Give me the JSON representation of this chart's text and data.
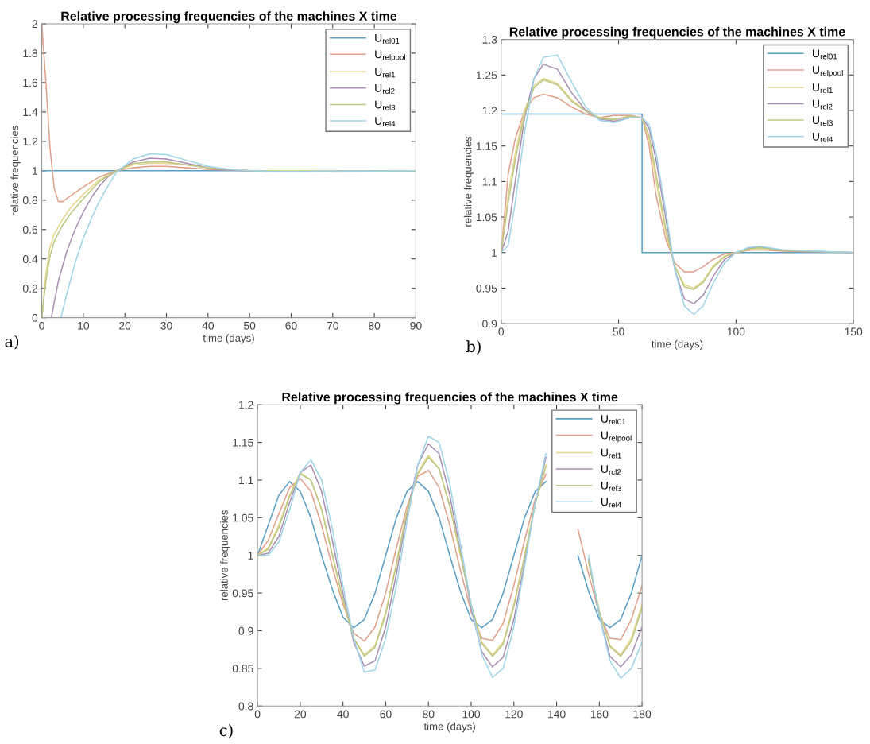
{
  "chart_data": [
    {
      "type": "line",
      "title": "Relative processing frequencies of the machines X time",
      "xlabel": "time (days)",
      "ylabel": "relative frequencies",
      "annotations": [
        "a)"
      ],
      "xlim": [
        0,
        90
      ],
      "ylim": [
        0,
        2
      ],
      "xticks": [
        0,
        10,
        20,
        30,
        40,
        50,
        60,
        70,
        80,
        90
      ],
      "yticks": [
        0,
        0.2,
        0.4,
        0.6,
        0.8,
        1,
        1.2,
        1.4,
        1.6,
        1.8,
        2
      ],
      "grid": false,
      "legend": "top right",
      "series": [
        {
          "name": "U$_{rel01}$",
          "color": "#5b9ec4",
          "x": [
            0,
            90
          ],
          "values": [
            1,
            1
          ]
        },
        {
          "name": "U$_{relpool}$",
          "color": "#e0a08a",
          "x": [
            0,
            1,
            2,
            3,
            4,
            5,
            7,
            10,
            14,
            18,
            22,
            26,
            30,
            35,
            40,
            45,
            50,
            60,
            90
          ],
          "values": [
            2.0,
            1.6,
            1.15,
            0.88,
            0.79,
            0.79,
            0.83,
            0.89,
            0.96,
            1.0,
            1.02,
            1.03,
            1.03,
            1.02,
            1.01,
            1.005,
            1.0,
            1.0,
            1.0
          ]
        },
        {
          "name": "U$_{rel1}$",
          "color": "#e6d68a",
          "x": [
            0,
            1,
            2,
            3,
            5,
            7,
            10,
            14,
            18,
            22,
            26,
            30,
            35,
            40,
            45,
            50,
            60,
            90
          ],
          "values": [
            0,
            0.3,
            0.48,
            0.57,
            0.67,
            0.75,
            0.84,
            0.94,
            1.0,
            1.04,
            1.05,
            1.05,
            1.04,
            1.02,
            1.01,
            1.0,
            1.0,
            1.0
          ]
        },
        {
          "name": "U$_{rcl2}$",
          "color": "#a98eb4",
          "x": [
            2.3,
            4,
            6,
            8,
            10,
            12,
            14,
            16,
            18,
            22,
            26,
            30,
            35,
            40,
            45,
            50,
            55,
            60,
            90
          ],
          "values": [
            0,
            0.25,
            0.45,
            0.6,
            0.72,
            0.82,
            0.9,
            0.96,
            1.0,
            1.06,
            1.085,
            1.08,
            1.05,
            1.02,
            1.005,
            1.0,
            0.995,
            0.995,
            1.0
          ]
        },
        {
          "name": "U$_{rel3}$",
          "color": "#bcc784",
          "x": [
            0,
            1,
            2,
            3,
            5,
            7,
            10,
            14,
            18,
            22,
            26,
            30,
            35,
            40,
            45,
            50,
            60,
            90
          ],
          "values": [
            0,
            0.25,
            0.42,
            0.52,
            0.63,
            0.71,
            0.81,
            0.93,
            1.0,
            1.05,
            1.06,
            1.06,
            1.04,
            1.02,
            1.01,
            1.0,
            0.995,
            1.0
          ]
        },
        {
          "name": "U$_{rel4}$",
          "color": "#9fd4e8",
          "x": [
            4.6,
            6,
            8,
            10,
            12,
            14,
            16,
            18,
            22,
            26,
            30,
            35,
            40,
            45,
            50,
            55,
            60,
            90
          ],
          "values": [
            0,
            0.16,
            0.37,
            0.54,
            0.68,
            0.8,
            0.9,
            0.99,
            1.08,
            1.115,
            1.11,
            1.07,
            1.03,
            1.01,
            1.0,
            0.995,
            0.995,
            1.0
          ]
        }
      ]
    },
    {
      "type": "line",
      "title": "Relative processing frequencies of the machines X time",
      "xlabel": "time (days)",
      "ylabel": "relative frequencies",
      "annotations": [
        "b)"
      ],
      "xlim": [
        0,
        150
      ],
      "ylim": [
        0.9,
        1.3
      ],
      "xticks": [
        0,
        50,
        100,
        150
      ],
      "yticks": [
        0.9,
        0.95,
        1,
        1.05,
        1.1,
        1.15,
        1.2,
        1.25,
        1.3
      ],
      "grid": false,
      "legend": "top right",
      "series": [
        {
          "name": "U$_{rel01}$",
          "color": "#5b9ec4",
          "x": [
            0,
            60,
            60,
            150
          ],
          "values": [
            1.195,
            1.195,
            1.0,
            1.0
          ]
        },
        {
          "name": "U$_{relpool}$",
          "color": "#e0a08a",
          "x": [
            0,
            3,
            6,
            10,
            14,
            18,
            24,
            30,
            36,
            42,
            48,
            55,
            60,
            63,
            66,
            70,
            74,
            78,
            82,
            86,
            90,
            95,
            100,
            105,
            110,
            120,
            150
          ],
          "values": [
            1.0,
            1.11,
            1.16,
            1.2,
            1.218,
            1.223,
            1.218,
            1.205,
            1.195,
            1.19,
            1.193,
            1.193,
            1.19,
            1.15,
            1.08,
            1.02,
            0.985,
            0.973,
            0.973,
            0.98,
            0.99,
            0.998,
            1.0,
            1.003,
            1.004,
            1.002,
            1.0
          ]
        },
        {
          "name": "U$_{rel1}$",
          "color": "#e6d68a",
          "x": [
            0,
            3,
            6,
            10,
            14,
            18,
            24,
            30,
            36,
            42,
            48,
            55,
            60,
            63,
            66,
            70,
            74,
            78,
            82,
            86,
            90,
            95,
            100,
            105,
            110,
            120,
            150
          ],
          "values": [
            1.0,
            1.08,
            1.14,
            1.2,
            1.235,
            1.245,
            1.238,
            1.215,
            1.2,
            1.19,
            1.188,
            1.192,
            1.19,
            1.16,
            1.1,
            1.03,
            0.98,
            0.955,
            0.95,
            0.96,
            0.98,
            0.995,
            1.0,
            1.004,
            1.006,
            1.003,
            1.0
          ]
        },
        {
          "name": "U$_{rcl2}$",
          "color": "#a98eb4",
          "x": [
            0,
            3,
            6,
            10,
            14,
            18,
            24,
            30,
            36,
            42,
            48,
            55,
            60,
            63,
            66,
            70,
            74,
            78,
            82,
            86,
            90,
            95,
            100,
            105,
            110,
            120,
            150
          ],
          "values": [
            1.0,
            1.03,
            1.1,
            1.19,
            1.245,
            1.265,
            1.258,
            1.225,
            1.2,
            1.188,
            1.185,
            1.19,
            1.19,
            1.175,
            1.13,
            1.05,
            0.975,
            0.935,
            0.928,
            0.94,
            0.965,
            0.99,
            1.0,
            1.006,
            1.008,
            1.003,
            1.0
          ]
        },
        {
          "name": "U$_{rel3}$",
          "color": "#bcc784",
          "x": [
            0,
            3,
            6,
            10,
            14,
            18,
            24,
            30,
            36,
            42,
            48,
            55,
            60,
            63,
            66,
            70,
            74,
            78,
            82,
            86,
            90,
            95,
            100,
            105,
            110,
            120,
            150
          ],
          "values": [
            1.0,
            1.07,
            1.13,
            1.195,
            1.232,
            1.243,
            1.236,
            1.213,
            1.199,
            1.189,
            1.187,
            1.192,
            1.19,
            1.165,
            1.11,
            1.035,
            0.98,
            0.952,
            0.948,
            0.958,
            0.978,
            0.994,
            1.0,
            1.005,
            1.007,
            1.003,
            1.0
          ]
        },
        {
          "name": "U$_{rel4}$",
          "color": "#9fd4e8",
          "x": [
            0,
            3,
            6,
            10,
            14,
            18,
            24,
            30,
            36,
            42,
            48,
            55,
            60,
            63,
            66,
            70,
            74,
            78,
            82,
            86,
            90,
            95,
            100,
            105,
            110,
            120,
            150
          ],
          "values": [
            1.0,
            1.01,
            1.07,
            1.17,
            1.245,
            1.275,
            1.278,
            1.24,
            1.205,
            1.186,
            1.183,
            1.19,
            1.19,
            1.18,
            1.14,
            1.06,
            0.975,
            0.925,
            0.913,
            0.925,
            0.955,
            0.985,
            1.0,
            1.007,
            1.009,
            1.004,
            1.0
          ]
        }
      ]
    },
    {
      "type": "line",
      "title": "Relative processing frequencies of the machines X time",
      "xlabel": "time (days)",
      "ylabel": "relative frequencies",
      "annotations": [
        "c)"
      ],
      "xlim": [
        0,
        180
      ],
      "ylim": [
        0.8,
        1.2
      ],
      "xticks": [
        0,
        20,
        40,
        60,
        80,
        100,
        120,
        140,
        160,
        180
      ],
      "yticks": [
        0.8,
        0.85,
        0.9,
        0.95,
        1,
        1.05,
        1.1,
        1.15,
        1.2
      ],
      "grid": false,
      "legend": "top right",
      "x": [
        0,
        5,
        10,
        15,
        20,
        25,
        30,
        35,
        40,
        45,
        50,
        55,
        60,
        65,
        70,
        75,
        80,
        85,
        90,
        95,
        100,
        105,
        110,
        115,
        120,
        125,
        130,
        135,
        140,
        145,
        150,
        155,
        160,
        165,
        170,
        175,
        180
      ],
      "series": [
        {
          "name": "U$_{rel01}$",
          "color": "#5b9ec4",
          "values": [
            1.0,
            1.04,
            1.08,
            1.098,
            1.085,
            1.05,
            1.0,
            0.955,
            0.918,
            0.904,
            0.915,
            0.95,
            1.0,
            1.05,
            1.085,
            1.098,
            1.085,
            1.05,
            1.0,
            0.952,
            0.915,
            0.904,
            0.915,
            0.95,
            1.0,
            1.05,
            1.085,
            1.098,
            null,
            null,
            1.0,
            0.952,
            0.915,
            0.904,
            0.915,
            0.95,
            1.0
          ]
        },
        {
          "name": "U$_{relpool}$",
          "color": "#e0a08a",
          "values": [
            1.0,
            1.02,
            1.055,
            1.09,
            1.102,
            1.085,
            1.04,
            0.985,
            0.935,
            0.897,
            0.886,
            0.905,
            0.95,
            1.01,
            1.065,
            1.105,
            1.113,
            1.09,
            1.04,
            0.98,
            0.925,
            0.89,
            0.887,
            0.91,
            0.96,
            1.02,
            1.075,
            1.108,
            null,
            null,
            1.035,
            0.975,
            0.922,
            0.89,
            0.888,
            0.915,
            0.96
          ]
        },
        {
          "name": "U$_{rel1}$",
          "color": "#e6d68a",
          "values": [
            1.0,
            1.01,
            1.04,
            1.08,
            1.11,
            1.1,
            1.06,
            1.0,
            0.94,
            0.89,
            0.868,
            0.88,
            0.925,
            0.99,
            1.06,
            1.11,
            1.133,
            1.115,
            1.065,
            1.0,
            0.935,
            0.885,
            0.868,
            0.885,
            0.935,
            1.0,
            1.07,
            1.12,
            null,
            null,
            null,
            0.99,
            0.925,
            0.88,
            0.868,
            0.89,
            0.935
          ]
        },
        {
          "name": "U$_{rcl2}$",
          "color": "#a98eb4",
          "values": [
            1.0,
            1.003,
            1.025,
            1.07,
            1.11,
            1.12,
            1.085,
            1.02,
            0.95,
            0.885,
            0.853,
            0.86,
            0.905,
            0.975,
            1.055,
            1.12,
            1.148,
            1.135,
            1.08,
            1.005,
            0.93,
            0.872,
            0.852,
            0.865,
            0.915,
            0.99,
            1.07,
            1.13,
            null,
            null,
            null,
            0.995,
            0.92,
            0.866,
            0.852,
            0.868,
            0.905
          ]
        },
        {
          "name": "U$_{rel3}$",
          "color": "#bcc784",
          "values": [
            1.0,
            1.008,
            1.037,
            1.078,
            1.108,
            1.1,
            1.062,
            1.002,
            0.942,
            0.89,
            0.866,
            0.878,
            0.922,
            0.987,
            1.058,
            1.108,
            1.13,
            1.115,
            1.066,
            1.002,
            0.935,
            0.883,
            0.866,
            0.882,
            0.932,
            0.998,
            1.068,
            1.118,
            null,
            null,
            null,
            0.992,
            0.926,
            0.879,
            0.866,
            0.886,
            0.93
          ]
        },
        {
          "name": "U$_{rel4}$",
          "color": "#9fd4e8",
          "values": [
            1.0,
            1.0,
            1.018,
            1.06,
            1.11,
            1.127,
            1.1,
            1.035,
            0.96,
            0.89,
            0.845,
            0.848,
            0.89,
            0.96,
            1.045,
            1.12,
            1.158,
            1.15,
            1.095,
            1.015,
            0.935,
            0.868,
            0.838,
            0.85,
            0.905,
            0.985,
            1.07,
            1.135,
            null,
            null,
            null,
            1.0,
            0.92,
            0.86,
            0.837,
            0.85,
            0.885
          ]
        }
      ]
    }
  ]
}
